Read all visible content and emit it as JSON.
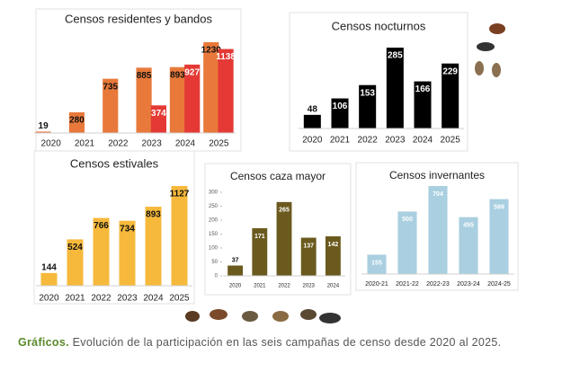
{
  "chart_data": [
    {
      "type": "bar",
      "title": "Censos residentes y bandos",
      "categories": [
        "2020",
        "2021",
        "2022",
        "2023",
        "2024",
        "2025"
      ],
      "series": [
        {
          "color": "#e8793a",
          "values": [
            19,
            280,
            735,
            885,
            893,
            1230
          ]
        },
        {
          "color": "#e53935",
          "values": [
            null,
            null,
            null,
            374,
            927,
            1138
          ]
        }
      ]
    },
    {
      "type": "bar",
      "title": "Censos nocturnos",
      "categories": [
        "2020",
        "2021",
        "2022",
        "2023",
        "2024",
        "2025"
      ],
      "values": [
        48,
        106,
        153,
        285,
        166,
        229
      ],
      "color": "#000000"
    },
    {
      "type": "bar",
      "title": "Censos estivales",
      "categories": [
        "2020",
        "2021",
        "2022",
        "2023",
        "2024",
        "2025"
      ],
      "values": [
        144,
        524,
        766,
        734,
        893,
        1127
      ],
      "color": "#f6b93b"
    },
    {
      "type": "bar",
      "title": "Censos caza mayor",
      "categories": [
        "2020",
        "2021",
        "2022",
        "2023",
        "2024"
      ],
      "values": [
        37,
        171,
        265,
        137,
        142
      ],
      "color": "#6b5a1e",
      "ylim": [
        0,
        300
      ],
      "yticks": [
        0,
        50,
        100,
        150,
        200,
        250,
        300
      ]
    },
    {
      "type": "bar",
      "title": "Censos invernantes",
      "categories": [
        "2020-21",
        "2021-22",
        "2022-23",
        "2023-24",
        "2024-25"
      ],
      "values": [
        155,
        500,
        704,
        455,
        599
      ],
      "color": "#a9cfe0"
    }
  ],
  "caption": {
    "label": "Gráficos.",
    "text": "Evolución de la participación en las seis campañas de censo desde 2020 al 2025."
  }
}
